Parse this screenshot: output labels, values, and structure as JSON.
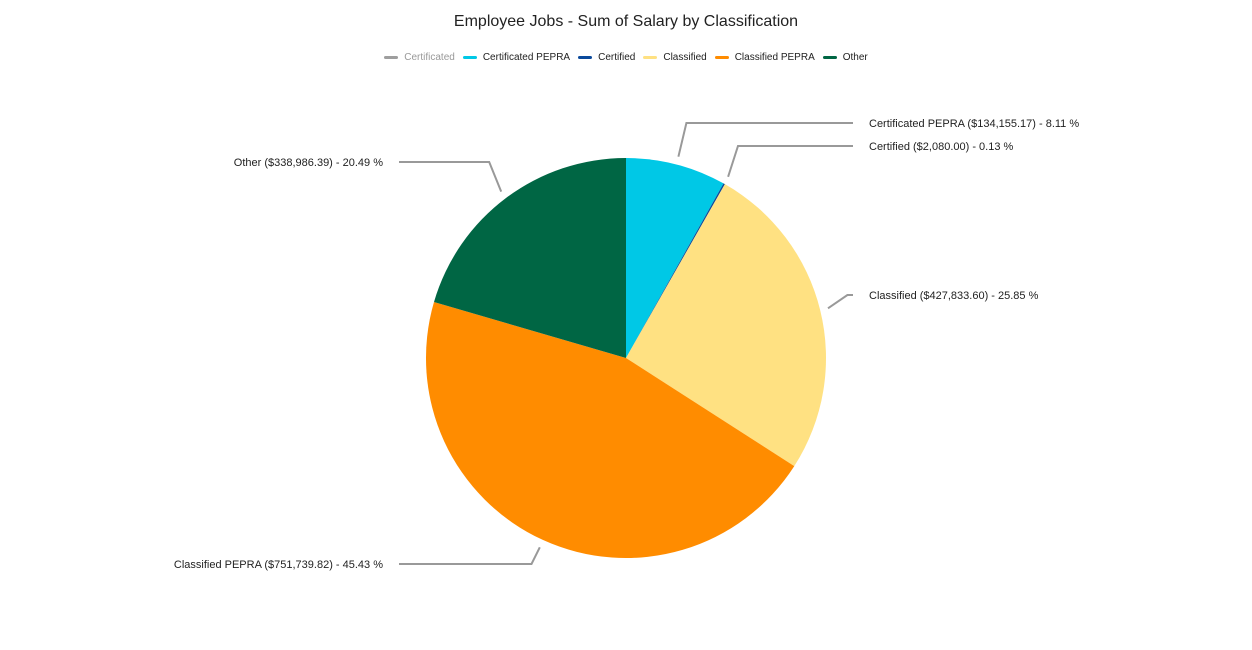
{
  "chart_data": {
    "type": "pie",
    "title": "Employee Jobs - Sum of Salary by Classification",
    "legend_position": "top",
    "legend": [
      {
        "name": "Certificated",
        "color": "#9e9e9e",
        "dimmed": true
      },
      {
        "name": "Certificated PEPRA",
        "color": "#00c8e6",
        "dimmed": false
      },
      {
        "name": "Certified",
        "color": "#0b4a9c",
        "dimmed": false
      },
      {
        "name": "Classified",
        "color": "#ffe182",
        "dimmed": false
      },
      {
        "name": "Classified PEPRA",
        "color": "#ff8c00",
        "dimmed": false
      },
      {
        "name": "Other",
        "color": "#006644",
        "dimmed": false
      }
    ],
    "slices": [
      {
        "name": "Certificated PEPRA",
        "value": 134155.17,
        "percent": 8.11,
        "color": "#00c8e6",
        "label": "Certificated PEPRA ($134,155.17) - 8.11 %",
        "label_side": "right"
      },
      {
        "name": "Certified",
        "value": 2080.0,
        "percent": 0.13,
        "color": "#0b4a9c",
        "label": "Certified ($2,080.00) - 0.13 %",
        "label_side": "right"
      },
      {
        "name": "Classified",
        "value": 427833.6,
        "percent": 25.85,
        "color": "#ffe182",
        "label": "Classified ($427,833.60) - 25.85 %",
        "label_side": "right"
      },
      {
        "name": "Classified PEPRA",
        "value": 751739.82,
        "percent": 45.43,
        "color": "#ff8c00",
        "label": "Classified PEPRA ($751,739.82) - 45.43 %",
        "label_side": "left"
      },
      {
        "name": "Other",
        "value": 338986.39,
        "percent": 20.49,
        "color": "#006644",
        "label": "Other ($338,986.39) - 20.49 %",
        "label_side": "left"
      }
    ]
  }
}
